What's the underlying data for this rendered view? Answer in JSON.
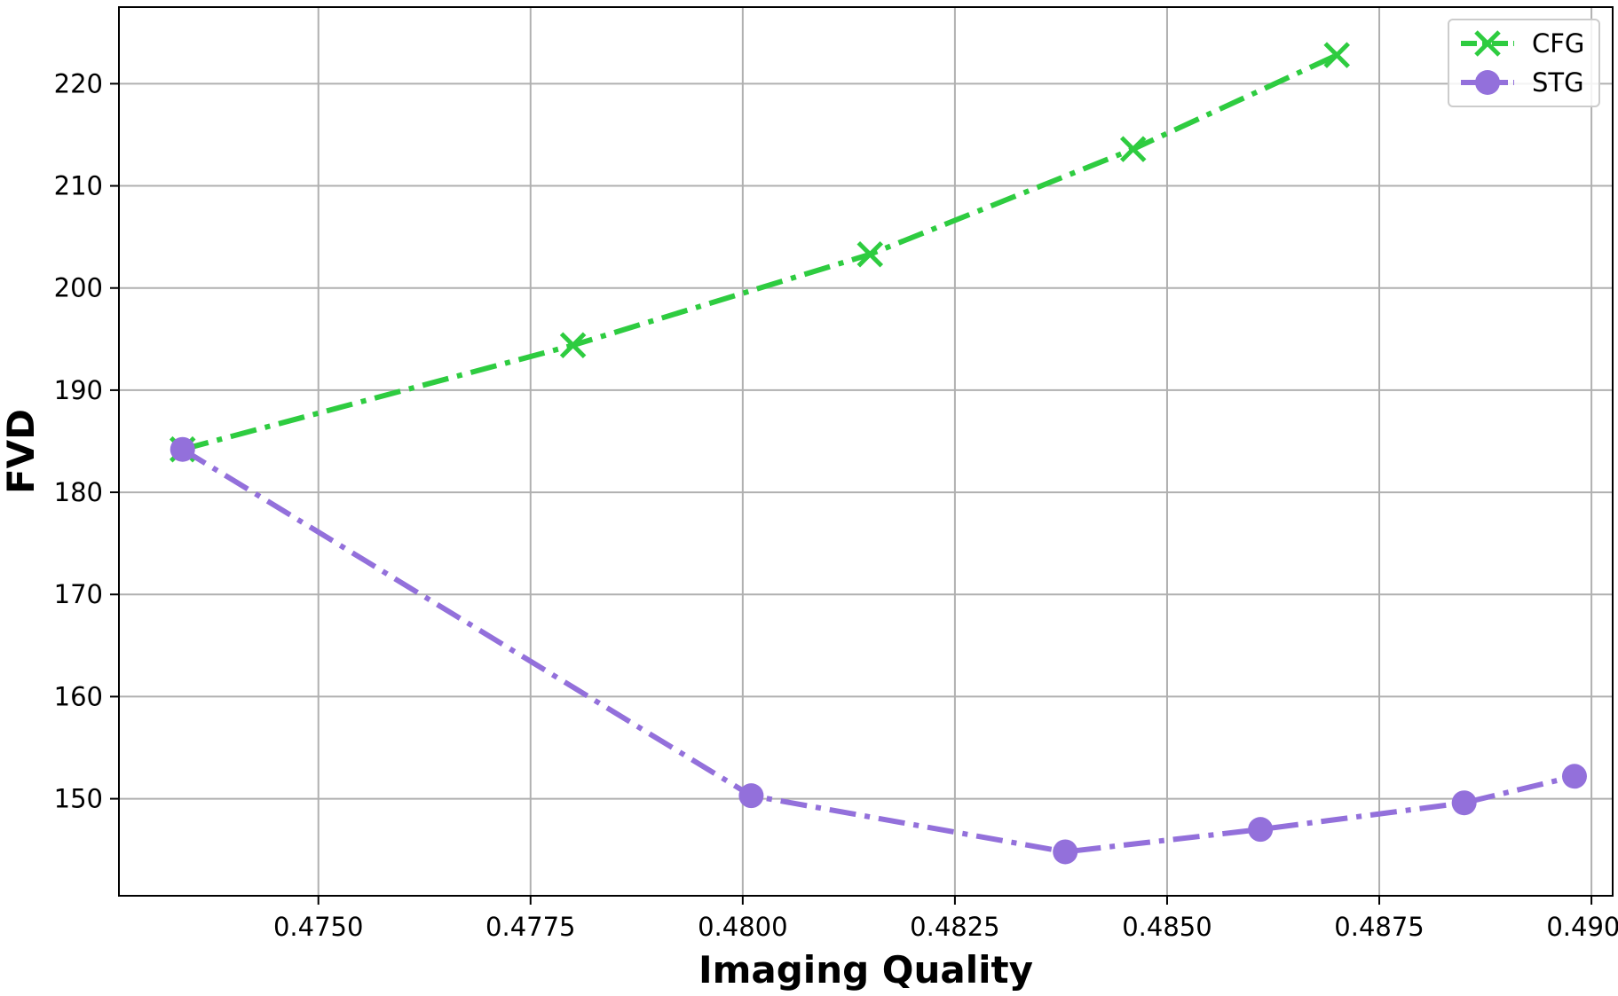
{
  "chart_data": {
    "type": "line",
    "title": "",
    "xlabel": "Imaging Quality",
    "ylabel": "FVD",
    "xlim": [
      0.47265,
      0.49025
    ],
    "ylim": [
      140.5,
      227.5
    ],
    "x_ticks": [
      0.475,
      0.4775,
      0.48,
      0.4825,
      0.485,
      0.4875,
      0.49
    ],
    "x_tick_labels": [
      "0.4750",
      "0.4775",
      "0.4800",
      "0.4825",
      "0.4850",
      "0.4875",
      "0.4900"
    ],
    "y_ticks": [
      150,
      160,
      170,
      180,
      190,
      200,
      210,
      220
    ],
    "y_tick_labels": [
      "150",
      "160",
      "170",
      "180",
      "190",
      "200",
      "210",
      "220"
    ],
    "grid": true,
    "legend_position": "top-right",
    "series": [
      {
        "name": "CFG",
        "color": "#2ecc40",
        "marker": "x",
        "line_style": "dash-dot",
        "x": [
          0.4734,
          0.478,
          0.4815,
          0.4846,
          0.487
        ],
        "y": [
          184.2,
          194.4,
          203.3,
          213.6,
          222.8
        ]
      },
      {
        "name": "STG",
        "color": "#9370db",
        "marker": "circle",
        "line_style": "dash-dot",
        "x": [
          0.4734,
          0.4801,
          0.4838,
          0.4861,
          0.4885,
          0.4898
        ],
        "y": [
          184.2,
          150.3,
          144.8,
          147.0,
          149.6,
          152.2
        ]
      }
    ]
  }
}
